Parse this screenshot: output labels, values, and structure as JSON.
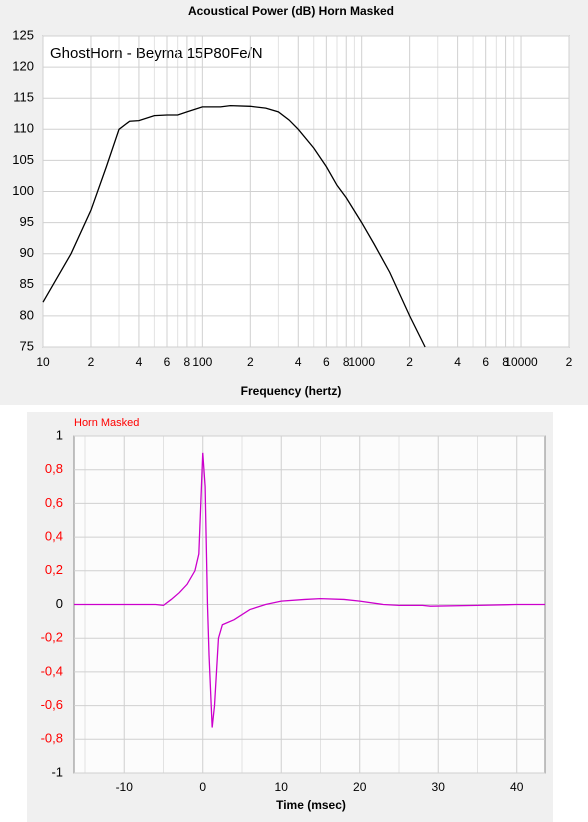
{
  "chart_data": [
    {
      "type": "line",
      "title": "Acoustical Power (dB)   Horn   Masked",
      "annotation": "GhostHorn - Beyma 15P80Fe/N",
      "xlabel": "Frequency (hertz)",
      "xscale": "log",
      "color": "#000000",
      "grid": true,
      "x": [
        10,
        15,
        20,
        25,
        30,
        35,
        40,
        50,
        60,
        70,
        80,
        100,
        130,
        150,
        200,
        250,
        300,
        350,
        400,
        500,
        600,
        700,
        800,
        1000,
        1200,
        1500,
        2000,
        2500
      ],
      "values": [
        82.2,
        90,
        97,
        104,
        110,
        111.3,
        111.4,
        112.2,
        112.3,
        112.3,
        112.8,
        113.6,
        113.6,
        113.8,
        113.7,
        113.4,
        112.8,
        111.5,
        110,
        107,
        104,
        101,
        99,
        95,
        91.5,
        87,
        80,
        75
      ],
      "xlim": [
        10,
        20000
      ],
      "ylim": [
        75,
        125
      ],
      "yticks": [
        75,
        80,
        85,
        90,
        95,
        100,
        105,
        110,
        115,
        120,
        125
      ],
      "xticks": [
        10,
        {
          "value": 20,
          "label": "2"
        },
        {
          "value": 40,
          "label": "4"
        },
        {
          "value": 60,
          "label": "6"
        },
        {
          "value": 80,
          "label": "8"
        },
        100,
        {
          "value": 200,
          "label": "2"
        },
        {
          "value": 400,
          "label": "4"
        },
        {
          "value": 600,
          "label": "6"
        },
        {
          "value": 800,
          "label": "8"
        },
        1000,
        {
          "value": 2000,
          "label": "2"
        },
        {
          "value": 4000,
          "label": "4"
        },
        {
          "value": 6000,
          "label": "6"
        },
        {
          "value": 8000,
          "label": "8"
        },
        10000,
        {
          "value": 20000,
          "label": "2"
        }
      ],
      "x_minor_ticks": [
        30,
        50,
        70,
        90,
        300,
        500,
        700,
        900,
        3000,
        5000,
        7000,
        9000
      ]
    },
    {
      "type": "line",
      "legend": "Horn    Masked",
      "xlabel": "Time (msec)",
      "color": "#cc00cc",
      "grid": true,
      "x": [
        -16.4,
        -6,
        -5,
        -4,
        -3,
        -2,
        -1,
        -0.5,
        0,
        0.3,
        0.6,
        0.8,
        1.2,
        1.5,
        2,
        2.5,
        4,
        6,
        8,
        10,
        13,
        15,
        18,
        20,
        23,
        25,
        28,
        29,
        35,
        40,
        43.6
      ],
      "values": [
        0,
        0,
        -0.005,
        0.03,
        0.07,
        0.12,
        0.2,
        0.3,
        0.9,
        0.7,
        0,
        -0.3,
        -0.73,
        -0.6,
        -0.2,
        -0.12,
        -0.09,
        -0.03,
        0,
        0.02,
        0.03,
        0.035,
        0.03,
        0.02,
        0,
        -0.005,
        -0.005,
        -0.01,
        -0.005,
        0,
        0
      ],
      "xlim": [
        -16.4,
        43.6
      ],
      "ylim": [
        -1,
        1
      ],
      "xticks": [
        -10,
        0,
        10,
        20,
        30,
        40
      ],
      "x_minor_ticks": [
        -15,
        -5,
        5,
        15,
        25,
        35
      ],
      "yticks": [
        -1,
        {
          "value": -0.8,
          "label": "-0,8"
        },
        {
          "value": -0.6,
          "label": "-0,6"
        },
        {
          "value": -0.4,
          "label": "-0,4"
        },
        {
          "value": -0.2,
          "label": "-0,2"
        },
        0,
        {
          "value": 0.2,
          "label": "0,2"
        },
        {
          "value": 0.4,
          "label": "0,4"
        },
        {
          "value": 0.6,
          "label": "0,6"
        },
        {
          "value": 0.8,
          "label": "0,8"
        },
        1
      ],
      "ytick_label_colors": [
        "#000000",
        "#ff0000",
        "#ff0000",
        "#ff0000",
        "#ff0000",
        "#000000",
        "#ff0000",
        "#ff0000",
        "#ff0000",
        "#ff0000",
        "#000000"
      ]
    }
  ]
}
